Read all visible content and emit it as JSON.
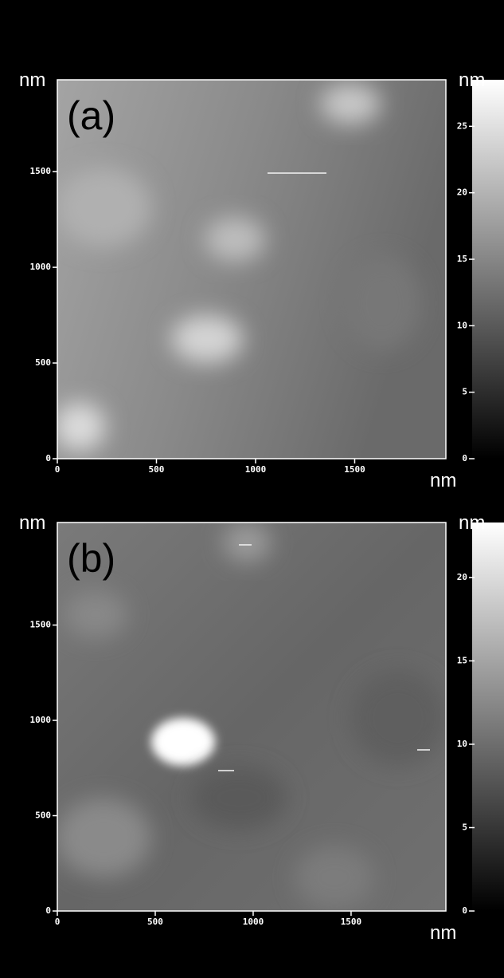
{
  "panels": [
    {
      "label": "(a)",
      "y_unit": "nm",
      "x_unit": "nm",
      "colorbar_unit": "nm",
      "xrange": [
        0,
        1960
      ],
      "yrange": [
        0,
        1980
      ],
      "xticks": [
        0,
        500,
        1000,
        1500
      ],
      "yticks": [
        0,
        500,
        1000,
        1500
      ],
      "colorbar_range": [
        0,
        28.5
      ],
      "colorbar_ticks": [
        0,
        5,
        10,
        15,
        20,
        25
      ]
    },
    {
      "label": "(b)",
      "y_unit": "nm",
      "x_unit": "nm",
      "colorbar_unit": "nm",
      "xrange": [
        0,
        1984
      ],
      "yrange": [
        0,
        2038
      ],
      "xticks": [
        0,
        500,
        1000,
        1500
      ],
      "yticks": [
        0,
        500,
        1000,
        1500
      ],
      "colorbar_range": [
        0,
        23.3
      ],
      "colorbar_ticks": [
        0,
        5,
        10,
        15,
        20
      ]
    }
  ]
}
